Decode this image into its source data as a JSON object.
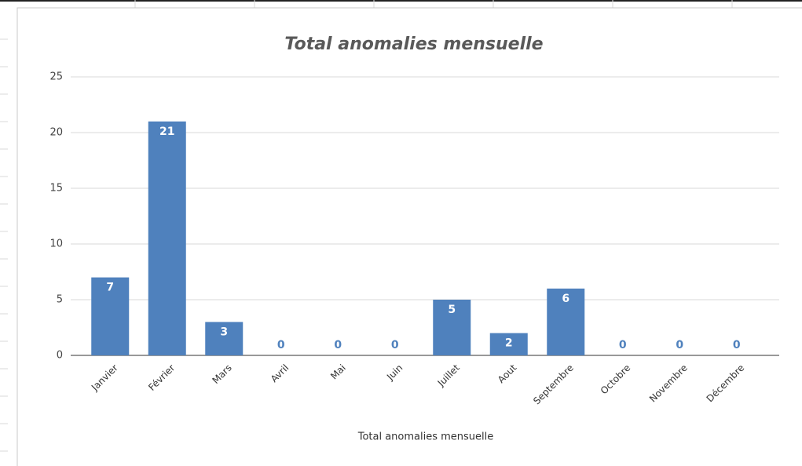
{
  "chart_data": {
    "type": "bar",
    "title": "Total anomalies mensuelle",
    "x_label": "Total anomalies mensuelle",
    "categories": [
      "Janvier",
      "Février",
      "Mars",
      "Avril",
      "Mai",
      "Juin",
      "Juillet",
      "Aout",
      "Septembre",
      "Octobre",
      "Novembre",
      "Décembre"
    ],
    "values": [
      7,
      21,
      3,
      0,
      0,
      0,
      5,
      2,
      6,
      0,
      0,
      0
    ],
    "color": "#4f81bd",
    "ylim": [
      0,
      25
    ],
    "yticks": [
      0,
      5,
      10,
      15,
      20,
      25
    ],
    "grid": true
  }
}
